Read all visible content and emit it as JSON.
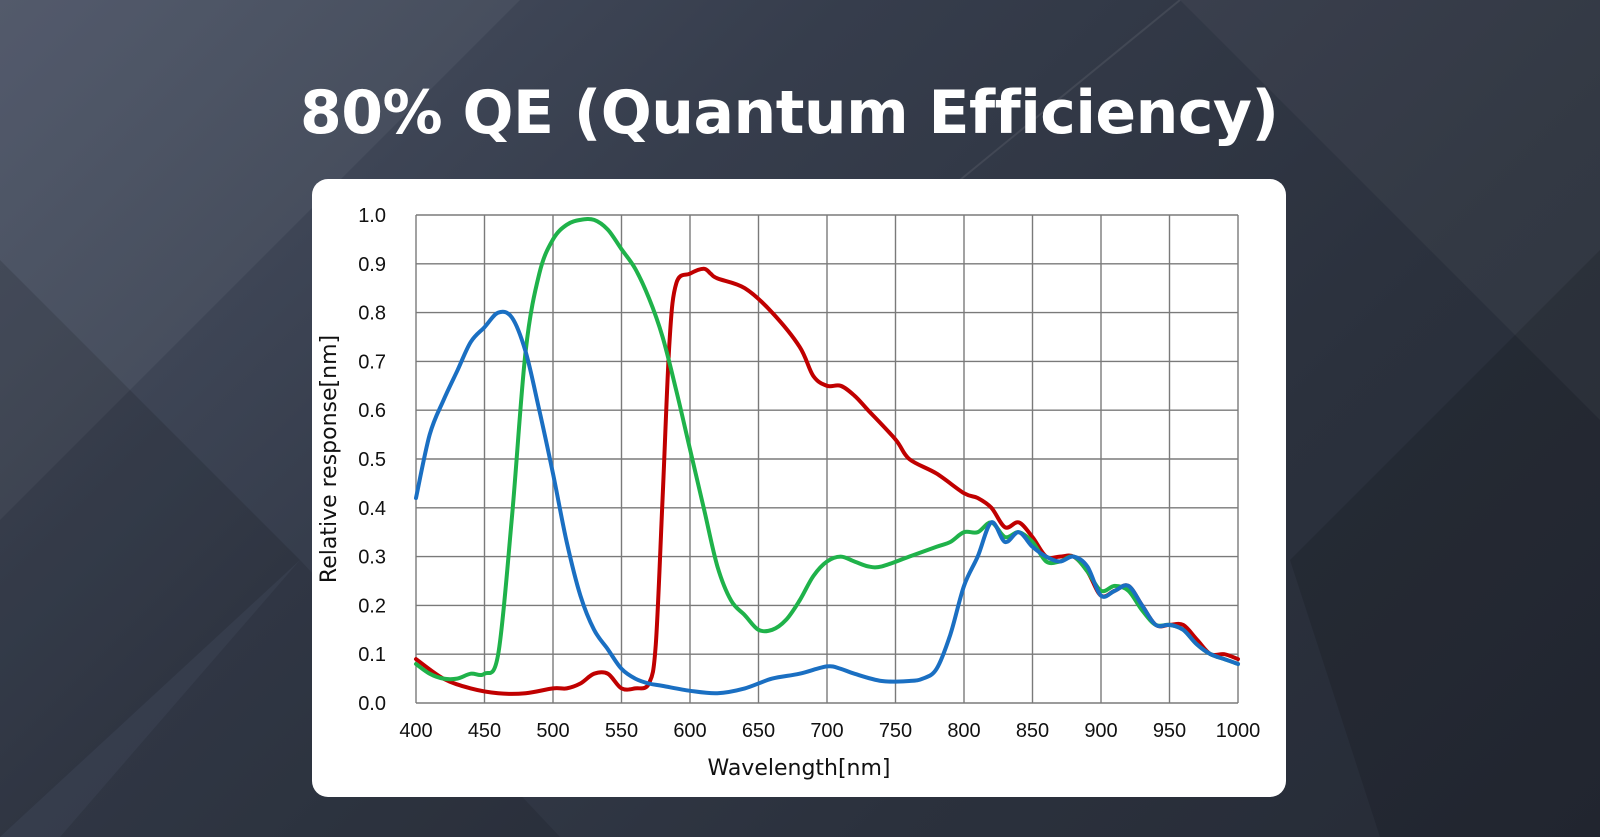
{
  "page": {
    "title": "80% QE (Quantum Efficiency)"
  },
  "colors": {
    "red": "#c00000",
    "green": "#1fb24a",
    "blue": "#1a6fc2",
    "grid": "#7a7a7a"
  },
  "chart_data": {
    "type": "line",
    "title": "80% QE (Quantum Efficiency)",
    "xlabel": "Wavelength[nm]",
    "ylabel": "Relative response[nm]",
    "xlim": [
      400,
      1000
    ],
    "ylim": [
      0.0,
      1.0
    ],
    "xticks": [
      400,
      450,
      500,
      550,
      600,
      650,
      700,
      750,
      800,
      850,
      900,
      950,
      1000
    ],
    "yticks": [
      0.0,
      0.1,
      0.2,
      0.3,
      0.4,
      0.5,
      0.6,
      0.7,
      0.8,
      0.9,
      1.0
    ],
    "ytick_labels": [
      "0.0",
      "0.1",
      "0.2",
      "0.3",
      "0.4",
      "0.5",
      "0.6",
      "0.7",
      "0.8",
      "0.9",
      "1.0"
    ],
    "grid": true,
    "series": [
      {
        "name": "Red",
        "color": "#c00000",
        "x": [
          400,
          420,
          440,
          460,
          480,
          500,
          510,
          520,
          530,
          540,
          550,
          560,
          570,
          575,
          580,
          585,
          590,
          600,
          610,
          615,
          620,
          640,
          660,
          680,
          690,
          700,
          710,
          720,
          730,
          750,
          760,
          780,
          800,
          810,
          820,
          830,
          840,
          850,
          860,
          870,
          880,
          890,
          900,
          910,
          920,
          930,
          940,
          950,
          960,
          970,
          980,
          990,
          1000
        ],
        "y": [
          0.09,
          0.05,
          0.03,
          0.02,
          0.02,
          0.03,
          0.03,
          0.04,
          0.06,
          0.06,
          0.03,
          0.03,
          0.04,
          0.12,
          0.42,
          0.74,
          0.86,
          0.88,
          0.89,
          0.88,
          0.87,
          0.85,
          0.8,
          0.73,
          0.67,
          0.65,
          0.65,
          0.63,
          0.6,
          0.54,
          0.5,
          0.47,
          0.43,
          0.42,
          0.4,
          0.36,
          0.37,
          0.34,
          0.3,
          0.3,
          0.3,
          0.27,
          0.22,
          0.23,
          0.24,
          0.2,
          0.16,
          0.16,
          0.16,
          0.13,
          0.1,
          0.1,
          0.09
        ]
      },
      {
        "name": "Green",
        "color": "#1fb24a",
        "x": [
          400,
          410,
          420,
          430,
          440,
          450,
          460,
          470,
          480,
          490,
          500,
          510,
          520,
          530,
          540,
          550,
          560,
          570,
          580,
          590,
          600,
          610,
          620,
          630,
          640,
          650,
          660,
          670,
          680,
          690,
          700,
          710,
          720,
          730,
          740,
          760,
          780,
          790,
          800,
          810,
          820,
          830,
          840,
          850,
          860,
          870,
          880,
          890,
          900,
          910,
          920,
          930,
          940,
          950,
          960,
          970,
          980,
          990,
          1000
        ],
        "y": [
          0.08,
          0.06,
          0.05,
          0.05,
          0.06,
          0.06,
          0.1,
          0.38,
          0.72,
          0.88,
          0.95,
          0.98,
          0.99,
          0.99,
          0.97,
          0.93,
          0.89,
          0.83,
          0.75,
          0.64,
          0.52,
          0.4,
          0.28,
          0.21,
          0.18,
          0.15,
          0.15,
          0.17,
          0.21,
          0.26,
          0.29,
          0.3,
          0.29,
          0.28,
          0.28,
          0.3,
          0.32,
          0.33,
          0.35,
          0.35,
          0.37,
          0.34,
          0.35,
          0.33,
          0.29,
          0.29,
          0.3,
          0.27,
          0.23,
          0.24,
          0.23,
          0.19,
          0.16,
          0.16,
          0.15,
          0.12,
          0.1,
          0.09,
          0.08
        ]
      },
      {
        "name": "Blue",
        "color": "#1a6fc2",
        "x": [
          400,
          410,
          420,
          430,
          440,
          450,
          460,
          470,
          480,
          490,
          500,
          510,
          520,
          530,
          540,
          550,
          560,
          570,
          580,
          600,
          620,
          640,
          660,
          680,
          700,
          710,
          720,
          740,
          760,
          770,
          780,
          790,
          800,
          810,
          820,
          830,
          840,
          850,
          860,
          870,
          880,
          890,
          900,
          910,
          920,
          930,
          940,
          950,
          960,
          970,
          980,
          990,
          1000
        ],
        "y": [
          0.42,
          0.55,
          0.62,
          0.68,
          0.74,
          0.77,
          0.8,
          0.79,
          0.72,
          0.6,
          0.47,
          0.33,
          0.22,
          0.15,
          0.11,
          0.07,
          0.05,
          0.04,
          0.035,
          0.025,
          0.02,
          0.03,
          0.05,
          0.06,
          0.075,
          0.07,
          0.06,
          0.045,
          0.045,
          0.05,
          0.07,
          0.14,
          0.24,
          0.3,
          0.37,
          0.33,
          0.35,
          0.32,
          0.3,
          0.29,
          0.3,
          0.28,
          0.22,
          0.23,
          0.24,
          0.2,
          0.16,
          0.16,
          0.15,
          0.12,
          0.1,
          0.09,
          0.08
        ]
      }
    ]
  }
}
